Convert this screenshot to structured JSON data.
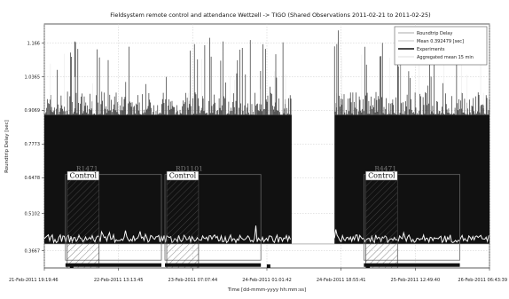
{
  "chart_data": {
    "type": "line",
    "title": "Fieldsystem remote control and attendance Wettzell -> TIGO (Shared Observations 2011-02-21 to 2011-02-25)",
    "xlabel": "Time [dd-mmm-yyyy hh:mm:ss]",
    "ylabel": "Roundtrip Delay [sec]",
    "ylim": [
      0.3,
      1.24
    ],
    "xlim": [
      "2011-02-21 19:19:46",
      "2011-02-26 06:43:39"
    ],
    "y_ticks": [
      "0.3667",
      "0.5102",
      "0.6478",
      "0.7773",
      "0.9069",
      "1.0365",
      "1.166"
    ],
    "x_ticks": [
      "21-Feb-2011 19:19:46",
      "22-Feb-2011 13:13:45",
      "23-Feb-2011 07:07:44",
      "24-Feb-2011 01:01:42",
      "24-Feb-2011 18:55:41",
      "25-Feb-2011 12:49:40",
      "26-Feb-2011 06:43:39"
    ],
    "legend": {
      "position": "top-right",
      "entries": [
        "Roundtrip Delay",
        "Mean 0.392479 [sec]",
        "Experiments",
        "Aggregated mean 15 min"
      ]
    },
    "mean_value": 0.392479,
    "dense_band_value": 0.89,
    "gap": [
      "2011-02-24 07:00:00",
      "2011-02-24 17:20:00"
    ],
    "experiments": [
      {
        "name": "R1471",
        "start": "2011-02-22 00:00:00",
        "end": "2011-02-23 00:00:00"
      },
      {
        "name": "RD1101",
        "start": "2011-02-23 00:00:00",
        "end": "2011-02-24 00:00:00"
      },
      {
        "name": "R4471",
        "start": "2011-02-25 00:00:00",
        "end": "2011-02-26 00:00:00"
      }
    ],
    "control_label": "Control"
  }
}
